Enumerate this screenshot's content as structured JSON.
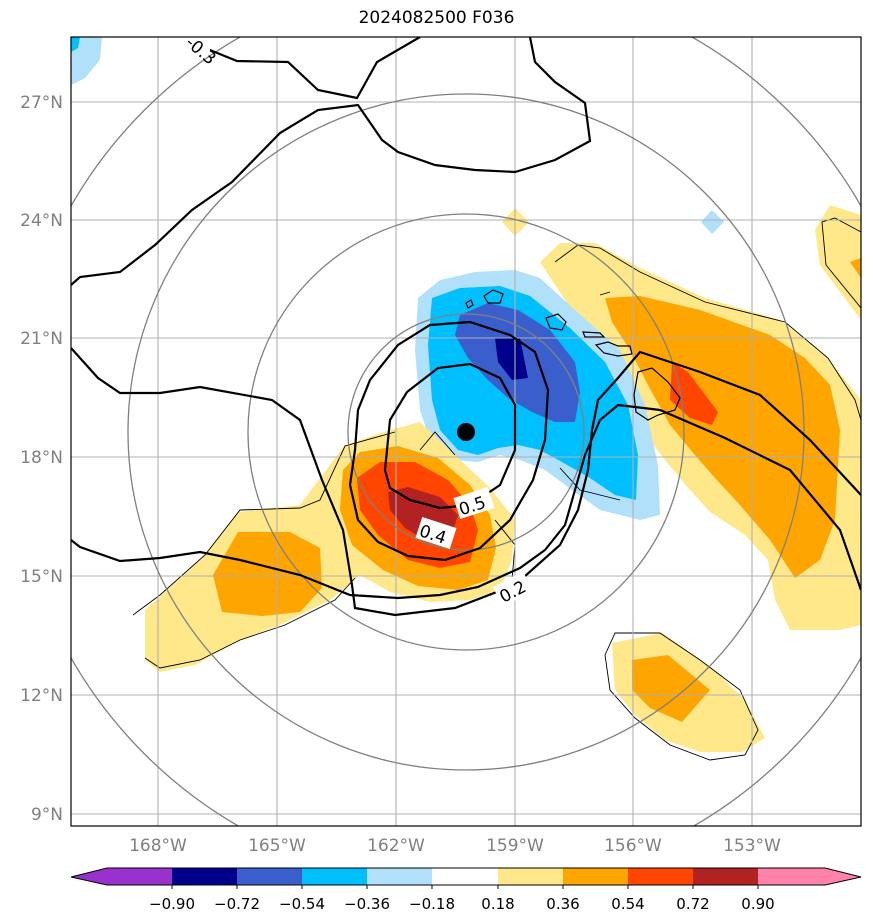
{
  "title": "2024082500 F036",
  "axes": {
    "lat_labels": [
      "27°N",
      "24°N",
      "21°N",
      "18°N",
      "15°N",
      "12°N",
      "9°N"
    ],
    "lon_labels": [
      "168°W",
      "165°W",
      "162°W",
      "159°W",
      "156°W",
      "153°W"
    ]
  },
  "contour_labels": [
    "-0.3",
    "0.5",
    "0.4",
    "0.2"
  ],
  "colorbar": {
    "ticks": [
      "−0.90",
      "−0.72",
      "−0.54",
      "−0.36",
      "−0.18",
      "0.18",
      "0.36",
      "0.54",
      "0.72",
      "0.90"
    ],
    "colors": [
      "#9932cc",
      "#00008b",
      "#3a5fcd",
      "#00bfff",
      "#b0e0fa",
      "#ffffff",
      "#ffe88a",
      "#ffa500",
      "#ff4500",
      "#b22222",
      "#ff82ab"
    ]
  },
  "colors": {
    "grid": "#b0b0b0",
    "range_rings": "#808080",
    "tick_text": "#808080"
  },
  "storm_center_marker": "filled-black-circle"
}
